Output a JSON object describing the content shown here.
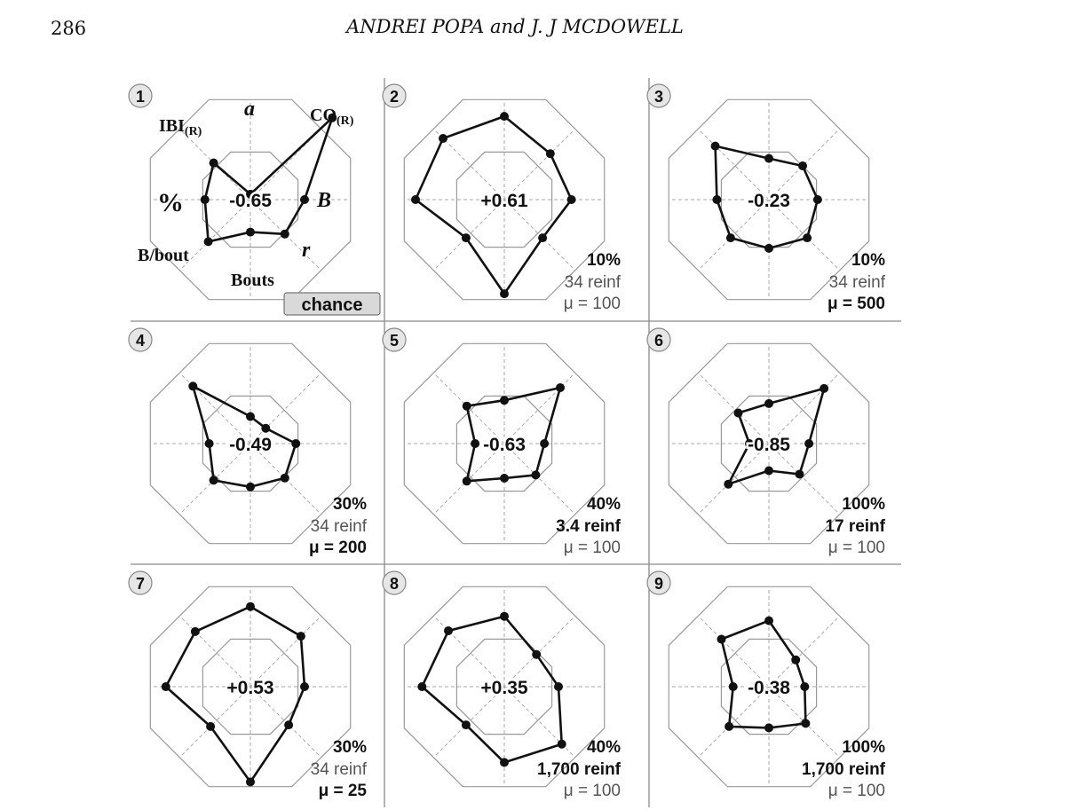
{
  "page": {
    "number": "286",
    "running_head": "ANDREI POPA and J. J MCDOWELL"
  },
  "colors": {
    "grid_ring": "#9a9a9a",
    "grid_spoke": "#a8a8a8",
    "profile_line": "#111111",
    "badge_fill": "#e6e6e6",
    "chance_fill": "#d9d9d9"
  },
  "axis_labels": {
    "a": "a",
    "co_main": "CO",
    "co_sub": "(R)",
    "B": "B",
    "r": "r",
    "bouts": "Bouts",
    "b_bout": "B/bout",
    "percent": "%",
    "ibi_main": "IBI",
    "ibi_sub": "(R)"
  },
  "chance_label": "chance",
  "chart_data": {
    "type": "radar",
    "axes": [
      "a",
      "CO(R)",
      "B",
      "r",
      "Bouts",
      "B/bout",
      "%",
      "IBI(R)"
    ],
    "panels": [
      {
        "id": "1",
        "correlation": "-0.65",
        "cond_percent": "",
        "cond_reinf": "",
        "cond_mu": "",
        "bold": [],
        "values": [
          0.05,
          1.07,
          0.5,
          0.45,
          0.3,
          0.55,
          0.42,
          0.48
        ]
      },
      {
        "id": "2",
        "correlation": "+0.61",
        "cond_percent": "10%",
        "cond_reinf": "34 reinf",
        "cond_mu": "μ = 100",
        "bold": [
          "percent"
        ],
        "values": [
          0.77,
          0.6,
          0.62,
          0.5,
          0.87,
          0.5,
          0.82,
          0.8
        ]
      },
      {
        "id": "3",
        "correlation": "-0.23",
        "cond_percent": "10%",
        "cond_reinf": "34 reinf",
        "cond_mu": "μ = 500",
        "bold": [
          "percent",
          "mu"
        ],
        "values": [
          0.38,
          0.44,
          0.45,
          0.5,
          0.45,
          0.5,
          0.48,
          0.7
        ]
      },
      {
        "id": "4",
        "correlation": "-0.49",
        "cond_percent": "30%",
        "cond_reinf": "34 reinf",
        "cond_mu": "μ = 200",
        "bold": [
          "percent",
          "mu"
        ],
        "values": [
          0.25,
          0.2,
          0.42,
          0.45,
          0.4,
          0.48,
          0.38,
          0.75
        ]
      },
      {
        "id": "5",
        "correlation": "-0.63",
        "cond_percent": "40%",
        "cond_reinf": "3.4 reinf",
        "cond_mu": "μ = 100",
        "bold": [
          "percent",
          "reinf"
        ],
        "values": [
          0.4,
          0.73,
          0.37,
          0.41,
          0.32,
          0.49,
          0.27,
          0.49
        ]
      },
      {
        "id": "6",
        "correlation": "-0.85",
        "cond_percent": "100%",
        "cond_reinf": "17 reinf",
        "cond_mu": "μ = 100",
        "bold": [
          "percent",
          "reinf"
        ],
        "values": [
          0.37,
          0.72,
          0.37,
          0.4,
          0.25,
          0.53,
          0.18,
          0.4
        ]
      },
      {
        "id": "7",
        "correlation": "+0.53",
        "cond_percent": "30%",
        "cond_reinf": "34 reinf",
        "cond_mu": "μ = 25",
        "bold": [
          "percent",
          "mu"
        ],
        "values": [
          0.74,
          0.66,
          0.5,
          0.5,
          0.88,
          0.52,
          0.78,
          0.72
        ]
      },
      {
        "id": "8",
        "correlation": "+0.35",
        "cond_percent": "40%",
        "cond_reinf": "1,700 reinf",
        "cond_mu": "μ = 100",
        "bold": [
          "percent",
          "reinf"
        ],
        "values": [
          0.65,
          0.42,
          0.5,
          0.75,
          0.7,
          0.5,
          0.76,
          0.73
        ]
      },
      {
        "id": "9",
        "correlation": "-0.38",
        "cond_percent": "100%",
        "cond_reinf": "1,700 reinf",
        "cond_mu": "μ = 100",
        "bold": [
          "percent",
          "reinf"
        ],
        "values": [
          0.61,
          0.35,
          0.33,
          0.48,
          0.38,
          0.52,
          0.33,
          0.62
        ]
      }
    ]
  }
}
